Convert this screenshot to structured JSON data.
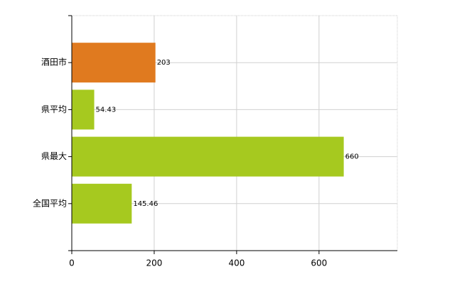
{
  "chart_data": {
    "type": "bar",
    "orientation": "horizontal",
    "categories": [
      "酒田市",
      "県平均",
      "県最大",
      "全国平均"
    ],
    "values": [
      203,
      54.43,
      660,
      145.46
    ],
    "colors": [
      "#e07a1f",
      "#a6c91f",
      "#a6c91f",
      "#a6c91f"
    ],
    "xlim": [
      0,
      790
    ],
    "xticks": [
      0,
      200,
      400,
      600
    ],
    "grid": true
  }
}
